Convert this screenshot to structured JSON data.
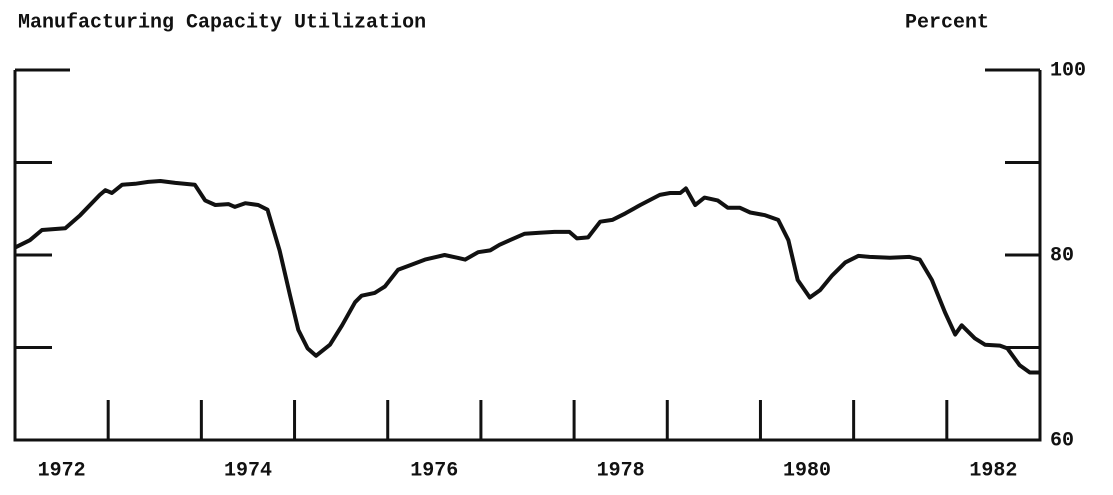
{
  "chart_data": {
    "type": "line",
    "title": "Manufacturing Capacity Utilization",
    "y_axis_label": "Percent",
    "xlim": [
      1972,
      1983
    ],
    "xticks": [
      {
        "value": 1972.5,
        "label": "1972"
      },
      {
        "value": 1974.5,
        "label": "1974"
      },
      {
        "value": 1976.5,
        "label": "1976"
      },
      {
        "value": 1978.5,
        "label": "1978"
      },
      {
        "value": 1980.5,
        "label": "1980"
      },
      {
        "value": 1982.5,
        "label": "1982"
      }
    ],
    "minor_xticks": [
      1973,
      1974,
      1975,
      1976,
      1977,
      1978,
      1979,
      1980,
      1981,
      1982
    ],
    "ylim": [
      60,
      100
    ],
    "yticks": [
      60,
      80,
      100
    ],
    "minor_yticks": [
      70,
      90
    ],
    "grid": false,
    "series": [
      {
        "color": "#111111",
        "x": [
          1972.0,
          1972.16,
          1972.29,
          1972.54,
          1972.7,
          1972.91,
          1972.97,
          1973.04,
          1973.15,
          1973.29,
          1973.43,
          1973.56,
          1973.72,
          1973.93,
          1974.04,
          1974.15,
          1974.29,
          1974.36,
          1974.47,
          1974.61,
          1974.71,
          1974.84,
          1974.95,
          1975.04,
          1975.14,
          1975.23,
          1975.38,
          1975.51,
          1975.65,
          1975.72,
          1975.86,
          1975.97,
          1976.11,
          1976.24,
          1976.4,
          1976.61,
          1976.75,
          1976.83,
          1976.97,
          1977.1,
          1977.2,
          1977.31,
          1977.47,
          1977.63,
          1977.79,
          1977.95,
          1978.03,
          1978.15,
          1978.28,
          1978.41,
          1978.55,
          1978.71,
          1978.92,
          1979.03,
          1979.14,
          1979.2,
          1979.3,
          1979.4,
          1979.54,
          1979.65,
          1979.78,
          1979.89,
          1980.05,
          1980.19,
          1980.3,
          1980.4,
          1980.53,
          1980.64,
          1980.77,
          1980.91,
          1981.05,
          1981.17,
          1981.39,
          1981.6,
          1981.71,
          1981.84,
          1981.98,
          1982.09,
          1982.16,
          1982.3,
          1982.41,
          1982.57,
          1982.65,
          1982.78,
          1982.89,
          1983.0
        ],
        "values": [
          80.8,
          81.6,
          82.7,
          82.9,
          84.3,
          86.5,
          87.0,
          86.7,
          87.6,
          87.7,
          87.9,
          88.0,
          87.8,
          87.6,
          85.9,
          85.4,
          85.5,
          85.2,
          85.6,
          85.4,
          84.9,
          80.5,
          75.7,
          71.9,
          69.9,
          69.1,
          70.3,
          72.4,
          74.9,
          75.6,
          75.9,
          76.6,
          78.4,
          78.9,
          79.5,
          80.0,
          79.7,
          79.5,
          80.3,
          80.5,
          81.1,
          81.6,
          82.3,
          82.4,
          82.5,
          82.5,
          81.8,
          81.9,
          83.6,
          83.8,
          84.5,
          85.4,
          86.5,
          86.7,
          86.7,
          87.2,
          85.4,
          86.2,
          85.9,
          85.1,
          85.1,
          84.6,
          84.3,
          83.8,
          81.6,
          77.3,
          75.4,
          76.2,
          77.8,
          79.2,
          79.9,
          79.8,
          79.7,
          79.8,
          79.5,
          77.3,
          73.8,
          71.4,
          72.4,
          71.0,
          70.3,
          70.2,
          69.9,
          68.1,
          67.3,
          67.3
        ]
      }
    ]
  }
}
